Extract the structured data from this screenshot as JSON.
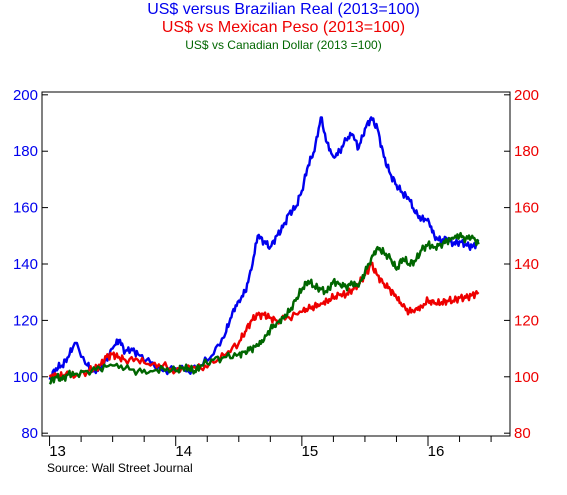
{
  "titles": [
    {
      "text": "US$ versus Brazilian Real (2013=100)",
      "color": "#0000ee"
    },
    {
      "text": "US$ vs Mexican Peso (2013=100)",
      "color": "#ee0000"
    },
    {
      "text": "US$ vs Canadian Dollar (2013 =100)",
      "color": "#006600"
    }
  ],
  "source": "Source:  Wall Street Journal",
  "chart_data": {
    "type": "line",
    "x_unit": "year",
    "xlim": [
      2012.94,
      2016.65
    ],
    "x_ticks": [
      {
        "label": "13",
        "value": 2013
      },
      {
        "label": "14",
        "value": 2014
      },
      {
        "label": "15",
        "value": 2015
      },
      {
        "label": "16",
        "value": 2016
      }
    ],
    "minor_ticks_per_year": 4,
    "y_left": {
      "ticks": [
        80,
        100,
        120,
        140,
        160,
        180,
        200
      ],
      "ylim": [
        79,
        201
      ],
      "color": "#0000ee"
    },
    "y_right": {
      "ticks": [
        80,
        100,
        120,
        140,
        160,
        180,
        200
      ],
      "ylim": [
        79,
        201
      ],
      "color": "#ee0000"
    },
    "grid": false,
    "series": [
      {
        "color": "#0000ee",
        "x": [
          2013.0,
          2013.05,
          2013.1,
          2013.15,
          2013.2,
          2013.3,
          2013.35,
          2013.4,
          2013.45,
          2013.5,
          2013.55,
          2013.6,
          2013.65,
          2013.7,
          2013.8,
          2013.9,
          2014.0,
          2014.1,
          2014.2,
          2014.3,
          2014.4,
          2014.45,
          2014.5,
          2014.55,
          2014.6,
          2014.65,
          2014.7,
          2014.75,
          2014.8,
          2014.85,
          2014.9,
          2014.95,
          2015.0,
          2015.05,
          2015.1,
          2015.15,
          2015.2,
          2015.25,
          2015.3,
          2015.35,
          2015.4,
          2015.45,
          2015.5,
          2015.55,
          2015.6,
          2015.65,
          2015.7,
          2015.75,
          2015.8,
          2015.85,
          2015.9,
          2015.95,
          2016.0,
          2016.05,
          2016.1,
          2016.15,
          2016.2,
          2016.25,
          2016.3,
          2016.35,
          2016.4
        ],
        "y": [
          99,
          103,
          104,
          107,
          112,
          104,
          102,
          103,
          106,
          110,
          113,
          109,
          110,
          108,
          105,
          102,
          103,
          102,
          104,
          108,
          116,
          123,
          127,
          130,
          138,
          150,
          148,
          146,
          150,
          153,
          158,
          160,
          166,
          175,
          180,
          192,
          183,
          178,
          180,
          184,
          186,
          181,
          188,
          192,
          188,
          178,
          172,
          168,
          165,
          163,
          158,
          156,
          156,
          150,
          148,
          149,
          147,
          148,
          147,
          146,
          148
        ]
      },
      {
        "color": "#ee0000",
        "x": [
          2013.0,
          2013.05,
          2013.1,
          2013.15,
          2013.2,
          2013.3,
          2013.35,
          2013.4,
          2013.45,
          2013.5,
          2013.55,
          2013.6,
          2013.7,
          2013.8,
          2013.9,
          2014.0,
          2014.1,
          2014.2,
          2014.3,
          2014.4,
          2014.5,
          2014.55,
          2014.6,
          2014.65,
          2014.7,
          2014.75,
          2014.8,
          2014.9,
          2015.0,
          2015.05,
          2015.1,
          2015.15,
          2015.2,
          2015.25,
          2015.3,
          2015.35,
          2015.4,
          2015.45,
          2015.5,
          2015.55,
          2015.6,
          2015.65,
          2015.7,
          2015.75,
          2015.8,
          2015.85,
          2015.9,
          2015.95,
          2016.0,
          2016.05,
          2016.1,
          2016.15,
          2016.2,
          2016.25,
          2016.3,
          2016.35,
          2016.4
        ],
        "y": [
          100,
          101,
          100,
          101,
          100,
          102,
          103,
          104,
          107,
          108,
          107,
          106,
          106,
          104,
          104,
          102,
          104,
          103,
          105,
          108,
          112,
          116,
          120,
          122,
          122,
          121,
          120,
          121,
          123,
          124,
          125,
          126,
          127,
          128,
          129,
          129,
          131,
          133,
          136,
          140,
          136,
          133,
          131,
          128,
          125,
          123,
          124,
          125,
          127,
          126,
          126,
          127,
          127,
          128,
          128,
          129,
          130
        ]
      },
      {
        "color": "#006600",
        "x": [
          2013.0,
          2013.05,
          2013.1,
          2013.15,
          2013.2,
          2013.3,
          2013.4,
          2013.5,
          2013.6,
          2013.7,
          2013.8,
          2013.9,
          2014.0,
          2014.05,
          2014.1,
          2014.15,
          2014.2,
          2014.3,
          2014.4,
          2014.5,
          2014.55,
          2014.6,
          2014.65,
          2014.7,
          2014.75,
          2014.8,
          2014.85,
          2014.9,
          2014.95,
          2015.0,
          2015.05,
          2015.1,
          2015.15,
          2015.2,
          2015.25,
          2015.3,
          2015.35,
          2015.4,
          2015.45,
          2015.5,
          2015.55,
          2015.6,
          2015.65,
          2015.7,
          2015.75,
          2015.8,
          2015.85,
          2015.9,
          2015.95,
          2016.0,
          2016.05,
          2016.1,
          2016.15,
          2016.2,
          2016.25,
          2016.3,
          2016.35,
          2016.4
        ],
        "y": [
          98,
          100,
          99,
          101,
          101,
          102,
          103,
          104,
          103,
          102,
          102,
          103,
          102,
          103,
          103,
          102,
          104,
          106,
          107,
          108,
          109,
          110,
          111,
          113,
          117,
          119,
          121,
          123,
          127,
          131,
          134,
          132,
          131,
          130,
          134,
          133,
          132,
          133,
          132,
          137,
          142,
          146,
          144,
          142,
          138,
          142,
          140,
          141,
          145,
          147,
          146,
          147,
          148,
          149,
          150,
          149,
          150,
          147
        ]
      }
    ]
  }
}
